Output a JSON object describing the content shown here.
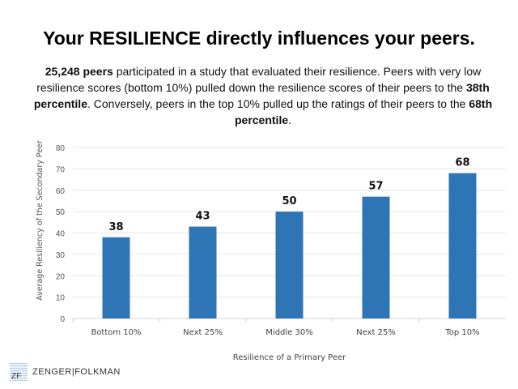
{
  "title": "Your RESILIENCE directly influences your peers.",
  "subtitle": {
    "b1": "25,248 peers",
    "t1": " participated in a study that evaluated their resilience. Peers with very low resilience scores (bottom 10%) pulled down the resilience scores of their peers to the ",
    "b2": "38th percentile",
    "t2": ". Conversely, peers in the top 10% pulled up the ratings of their peers to the ",
    "b3": "68th percentile",
    "t3": "."
  },
  "chart_data": {
    "type": "bar",
    "categories": [
      "Bottom 10%",
      "Next 25%",
      "Middle 30%",
      "Next 25%",
      "Top 10%"
    ],
    "values": [
      38,
      43,
      50,
      57,
      68
    ],
    "data_labels": [
      "38",
      "43",
      "50",
      "57",
      "68"
    ],
    "xlabel": "Resilience of a Primary Peer",
    "ylabel": "Average Resiliency of the Secondary Peer",
    "ylim": [
      0,
      80
    ],
    "yticks": [
      0,
      10,
      20,
      30,
      40,
      50,
      60,
      70,
      80
    ],
    "grid": true,
    "bar_color": "#2e75b6"
  },
  "logo": {
    "mark": "ZF",
    "text": "ZENGER|FOLKMAN"
  }
}
